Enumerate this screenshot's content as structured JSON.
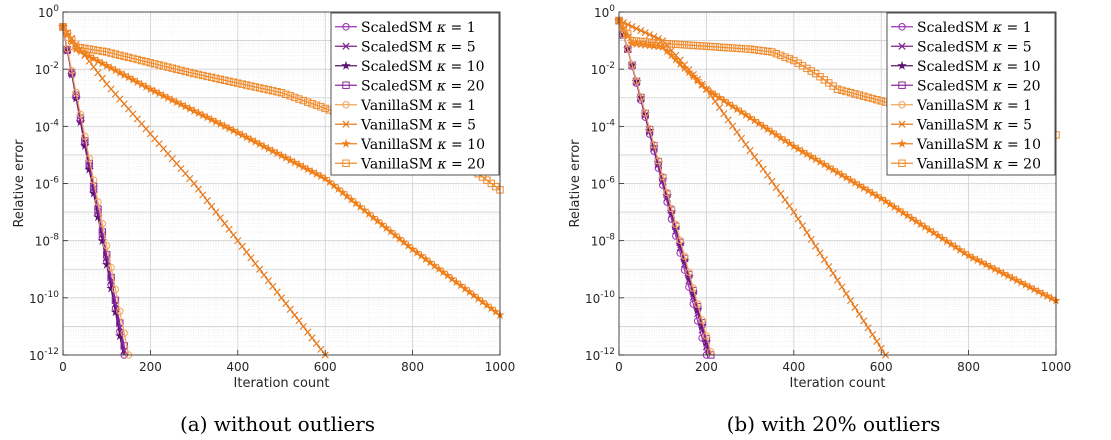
{
  "chart_data": [
    {
      "type": "line",
      "caption": "(a) without outliers",
      "xlabel": "Iteration count",
      "ylabel": "Relative error",
      "xlim": [
        0,
        1000
      ],
      "ylim": [
        1e-12,
        1
      ],
      "yscale": "log",
      "grid": true,
      "minor_grid": true,
      "legend_position": "top-right",
      "x_ticks": [
        "0",
        "200",
        "400",
        "600",
        "800",
        "1000"
      ],
      "y_ticks": [
        "10^-12",
        "10^-10",
        "10^-8",
        "10^-6",
        "10^-4",
        "10^-2",
        "10^0"
      ],
      "series": [
        {
          "name": "ScaledSM κ = 1",
          "legend_prefix": "ScaledSM",
          "kappa": "1",
          "color": "#9b30b5",
          "marker": "circle",
          "x": [
            0,
            140
          ],
          "y": [
            0.3,
            1e-12
          ]
        },
        {
          "name": "ScaledSM κ = 5",
          "legend_prefix": "ScaledSM",
          "kappa": "5",
          "color": "#7a1f8e",
          "marker": "x",
          "x": [
            0,
            142
          ],
          "y": [
            0.3,
            1e-12
          ]
        },
        {
          "name": "ScaledSM κ = 10",
          "legend_prefix": "ScaledSM",
          "kappa": "10",
          "color": "#5b1170",
          "marker": "star",
          "x": [
            0,
            138
          ],
          "y": [
            0.3,
            1e-12
          ]
        },
        {
          "name": "ScaledSM κ = 20",
          "legend_prefix": "ScaledSM",
          "kappa": "20",
          "color": "#8a2aa0",
          "marker": "square",
          "x": [
            0,
            144
          ],
          "y": [
            0.3,
            1e-12
          ]
        },
        {
          "name": "VanillaSM κ = 1",
          "legend_prefix": "VanillaSM",
          "kappa": "1",
          "color": "#f2a65a",
          "marker": "circle",
          "x": [
            0,
            150
          ],
          "y": [
            0.3,
            1e-12
          ]
        },
        {
          "name": "VanillaSM κ = 5",
          "legend_prefix": "VanillaSM",
          "kappa": "5",
          "color": "#e8781a",
          "marker": "x",
          "x": [
            0,
            100,
            300,
            500,
            600
          ],
          "y": [
            0.3,
            0.003,
            1e-06,
            1e-10,
            1e-12
          ]
        },
        {
          "name": "VanillaSM κ = 10",
          "legend_prefix": "VanillaSM",
          "kappa": "10",
          "color": "#f07f1a",
          "marker": "star",
          "x": [
            0,
            30,
            200,
            400,
            600,
            800,
            1000
          ],
          "y": [
            0.3,
            0.05,
            0.002,
            6e-05,
            1.5e-06,
            5e-09,
            2.5e-11
          ]
        },
        {
          "name": "VanillaSM κ = 20",
          "legend_prefix": "VanillaSM",
          "kappa": "20",
          "color": "#f08a2a",
          "marker": "square",
          "x": [
            0,
            30,
            100,
            300,
            500,
            700,
            900,
            1000
          ],
          "y": [
            0.3,
            0.06,
            0.04,
            0.007,
            0.0015,
            0.00012,
            8e-06,
            6e-07
          ]
        }
      ]
    },
    {
      "type": "line",
      "caption": "(b) with 20% outliers",
      "xlabel": "Iteration count",
      "ylabel": "Relative error",
      "xlim": [
        0,
        1000
      ],
      "ylim": [
        1e-12,
        1
      ],
      "yscale": "log",
      "grid": true,
      "minor_grid": true,
      "legend_position": "top-right",
      "x_ticks": [
        "0",
        "200",
        "400",
        "600",
        "800",
        "1000"
      ],
      "y_ticks": [
        "10^-12",
        "10^-10",
        "10^-8",
        "10^-6",
        "10^-4",
        "10^-2",
        "10^0"
      ],
      "series": [
        {
          "name": "ScaledSM κ = 1",
          "legend_prefix": "ScaledSM",
          "kappa": "1",
          "color": "#9b30b5",
          "marker": "circle",
          "x": [
            0,
            20,
            200
          ],
          "y": [
            0.5,
            0.05,
            1e-12
          ]
        },
        {
          "name": "ScaledSM κ = 5",
          "legend_prefix": "ScaledSM",
          "kappa": "5",
          "color": "#7a1f8e",
          "marker": "x",
          "x": [
            0,
            20,
            205
          ],
          "y": [
            0.5,
            0.05,
            1e-12
          ]
        },
        {
          "name": "ScaledSM κ = 10",
          "legend_prefix": "ScaledSM",
          "kappa": "10",
          "color": "#5b1170",
          "marker": "star",
          "x": [
            0,
            20,
            208
          ],
          "y": [
            0.5,
            0.05,
            1e-12
          ]
        },
        {
          "name": "ScaledSM κ = 20",
          "legend_prefix": "ScaledSM",
          "kappa": "20",
          "color": "#8a2aa0",
          "marker": "square",
          "x": [
            0,
            20,
            210
          ],
          "y": [
            0.5,
            0.05,
            1e-12
          ]
        },
        {
          "name": "VanillaSM κ = 1",
          "legend_prefix": "VanillaSM",
          "kappa": "1",
          "color": "#f2a65a",
          "marker": "circle",
          "x": [
            0,
            20,
            212
          ],
          "y": [
            0.5,
            0.05,
            1e-12
          ]
        },
        {
          "name": "VanillaSM κ = 5",
          "legend_prefix": "VanillaSM",
          "kappa": "5",
          "color": "#e8781a",
          "marker": "x",
          "x": [
            0,
            100,
            200,
            400,
            610
          ],
          "y": [
            0.5,
            0.1,
            0.002,
            1e-07,
            1e-12
          ]
        },
        {
          "name": "VanillaSM κ = 10",
          "legend_prefix": "VanillaSM",
          "kappa": "10",
          "color": "#f07f1a",
          "marker": "star",
          "x": [
            0,
            30,
            100,
            200,
            400,
            600,
            800,
            1000
          ],
          "y": [
            0.5,
            0.08,
            0.06,
            0.002,
            2e-05,
            3e-07,
            3e-09,
            8e-11
          ]
        },
        {
          "name": "VanillaSM κ = 20",
          "legend_prefix": "VanillaSM",
          "kappa": "20",
          "color": "#f08a2a",
          "marker": "square",
          "x": [
            0,
            30,
            100,
            300,
            350,
            400,
            450,
            500,
            700,
            1000
          ],
          "y": [
            0.5,
            0.1,
            0.08,
            0.05,
            0.04,
            0.02,
            0.007,
            0.002,
            0.0003,
            5e-05
          ]
        }
      ]
    }
  ]
}
